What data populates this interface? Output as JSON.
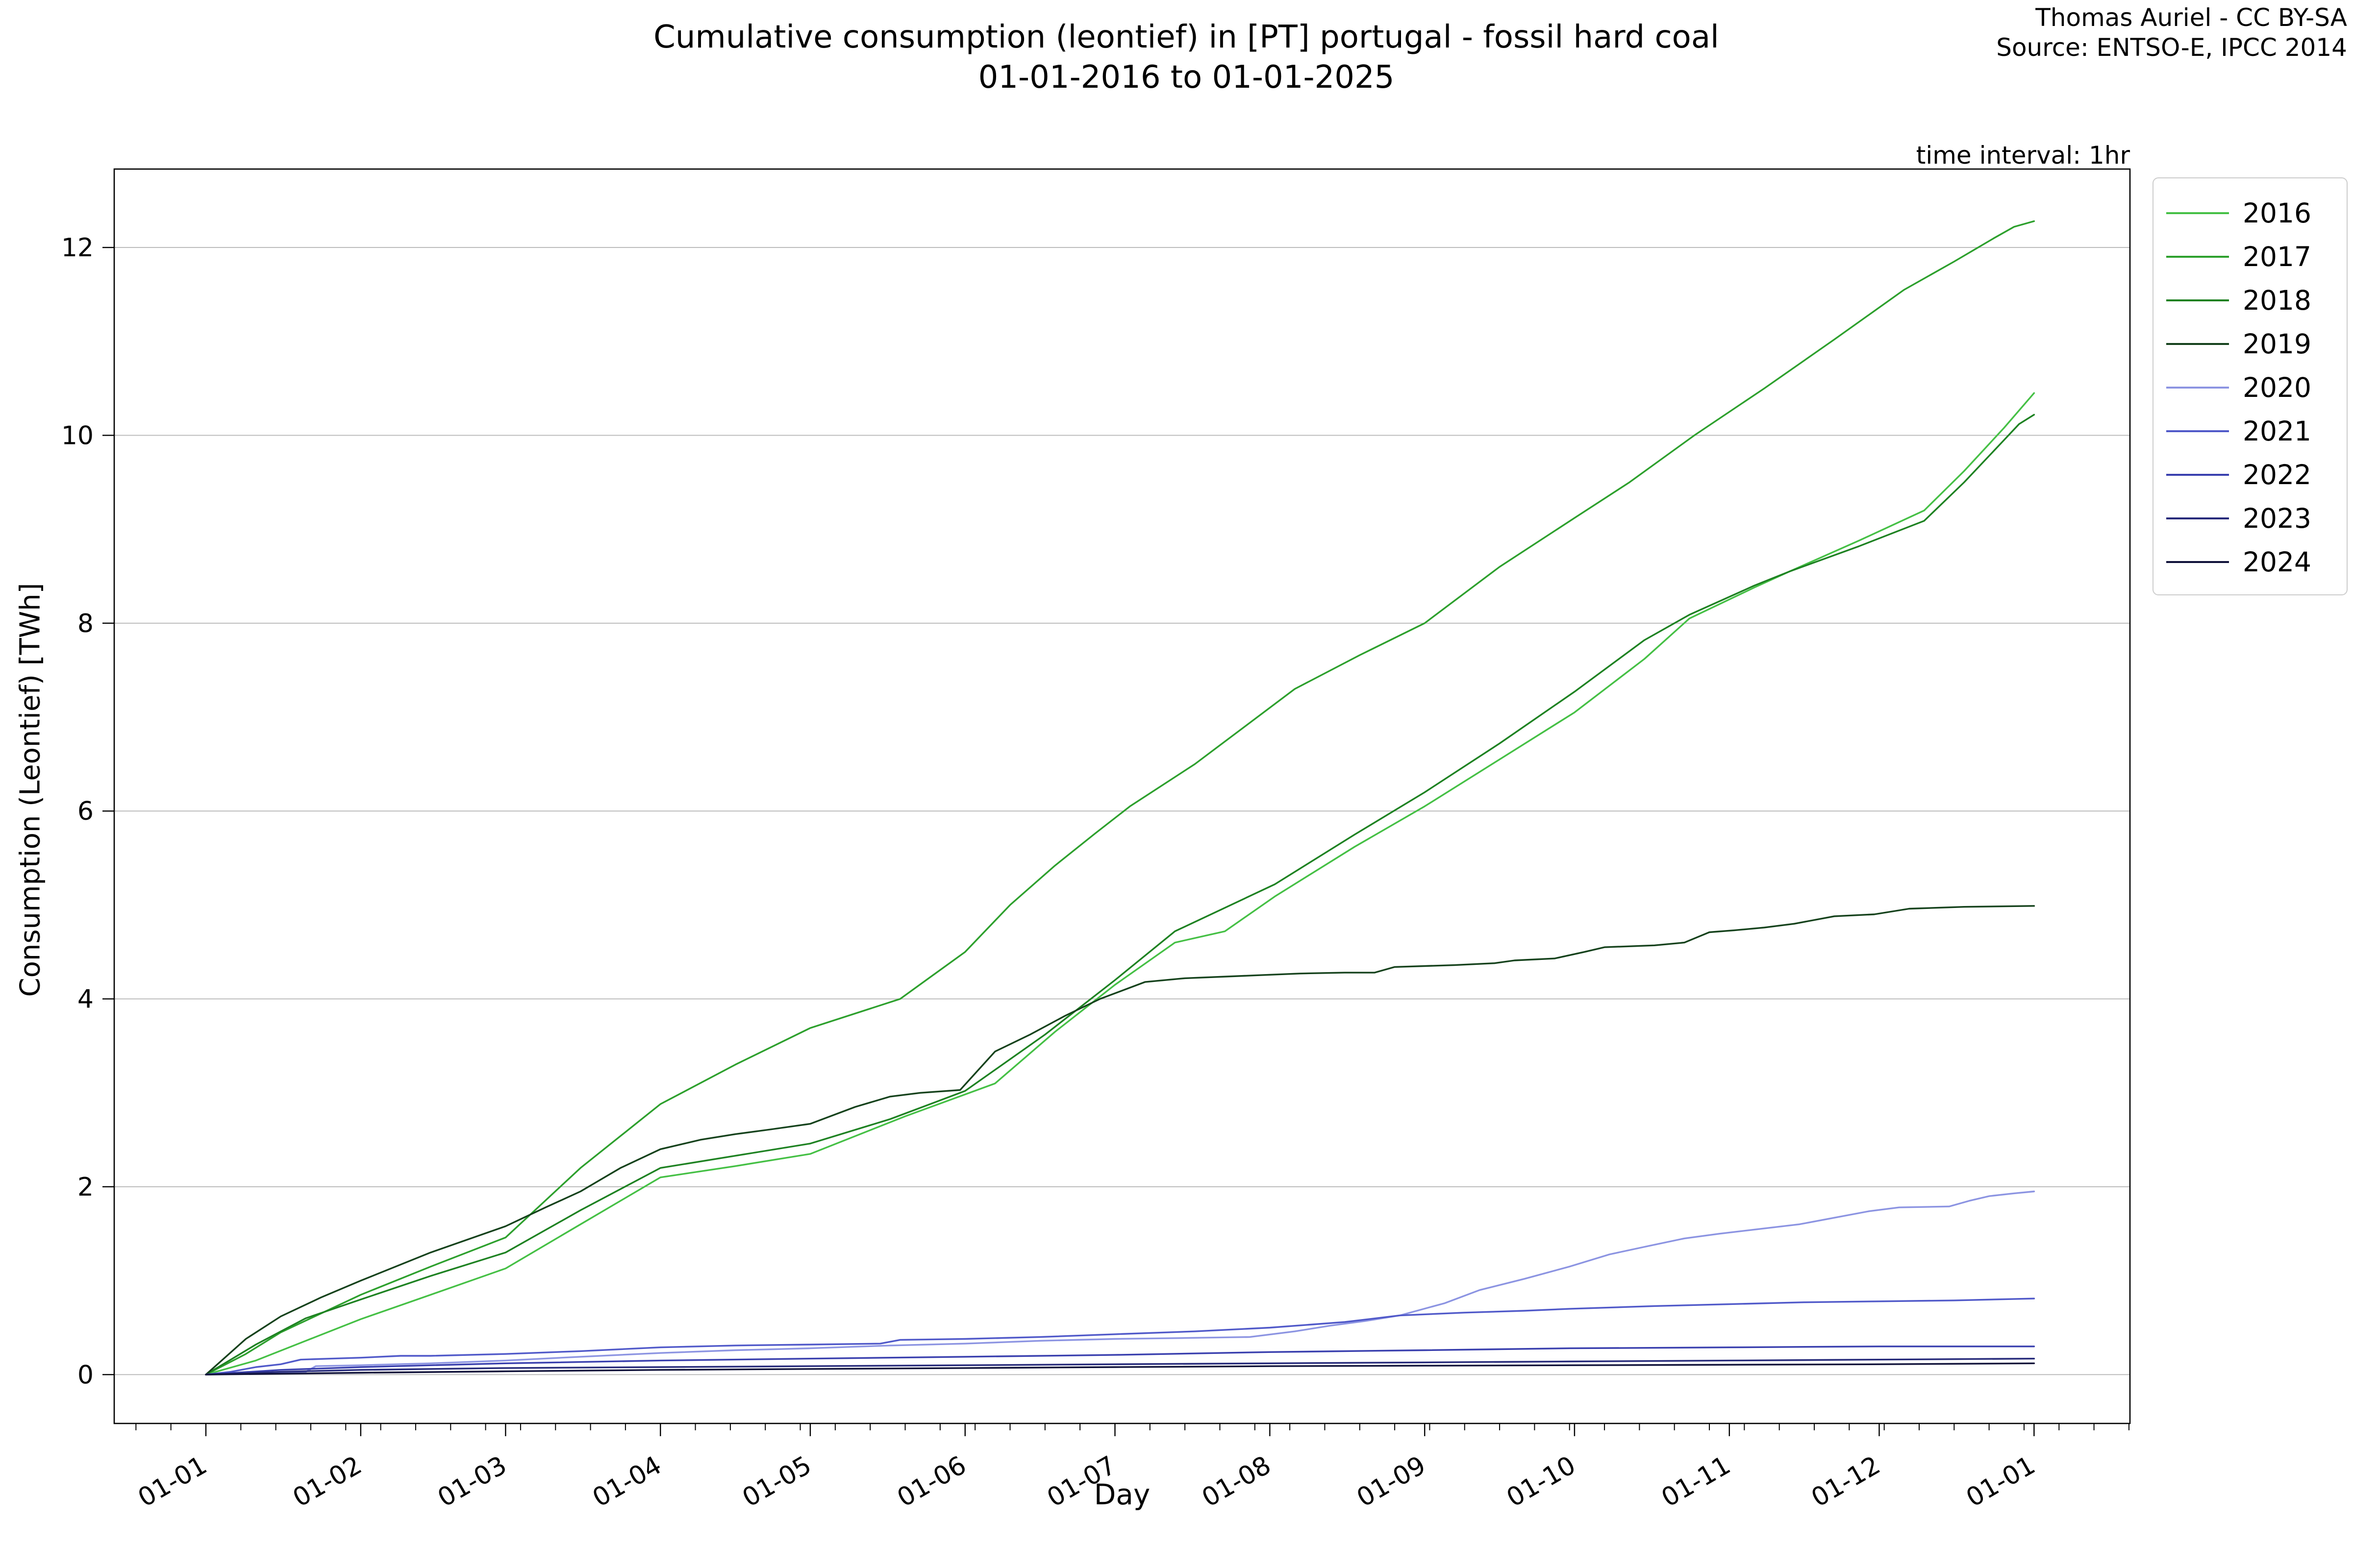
{
  "header": {
    "title_line1": "Cumulative consumption (leontief) in [PT] portugal - fossil hard coal",
    "title_line2": "01-01-2016 to 01-01-2025",
    "attribution_line1": "Thomas Auriel - CC BY-SA",
    "attribution_line2": "Source: ENTSO-E, IPCC 2014",
    "time_interval_label": "time interval: 1hr"
  },
  "chart_data": {
    "type": "line",
    "title": "Cumulative consumption (leontief) in [PT] portugal - fossil hard coal 01-01-2016 to 01-01-2025",
    "xlabel": "Day",
    "ylabel": "Consumption (Leontief) [TWh]",
    "x_unit": "day of year (01-01 = day 0)",
    "y_unit": "TWh",
    "xlim": [
      -18.35,
      385.2
    ],
    "ylim": [
      -0.52,
      12.835
    ],
    "y_ticks": [
      0,
      2,
      4,
      6,
      8,
      10,
      12
    ],
    "x_ticks": {
      "days": [
        0,
        31,
        60,
        91,
        121,
        152,
        182,
        213,
        244,
        274,
        305,
        335,
        366
      ],
      "labels": [
        "01-01",
        "01-02",
        "01-03",
        "01-04",
        "01-05",
        "01-06",
        "01-07",
        "01-08",
        "01-09",
        "01-10",
        "01-11",
        "01-12",
        "01-01"
      ]
    },
    "minor_tick_step_days": 7,
    "grid": "horizontal",
    "grid_color": "#b9b9b9",
    "legend_position": "outside upper right",
    "series": [
      {
        "name": "2016",
        "color": "#45c045",
        "end_value_TWh": 10.45,
        "points": [
          [
            0,
            0
          ],
          [
            10,
            0.15
          ],
          [
            20,
            0.36
          ],
          [
            31,
            0.59
          ],
          [
            45,
            0.85
          ],
          [
            60,
            1.13
          ],
          [
            75,
            1.6
          ],
          [
            91,
            2.1
          ],
          [
            106,
            2.22
          ],
          [
            121,
            2.35
          ],
          [
            140,
            2.75
          ],
          [
            158,
            3.1
          ],
          [
            170,
            3.65
          ],
          [
            182,
            4.15
          ],
          [
            194,
            4.6
          ],
          [
            204,
            4.72
          ],
          [
            214,
            5.09
          ],
          [
            230,
            5.62
          ],
          [
            244,
            6.05
          ],
          [
            259,
            6.55
          ],
          [
            274,
            7.05
          ],
          [
            288,
            7.62
          ],
          [
            297,
            8.05
          ],
          [
            310,
            8.38
          ],
          [
            317,
            8.55
          ],
          [
            331,
            8.88
          ],
          [
            344,
            9.2
          ],
          [
            352,
            9.62
          ],
          [
            360,
            10.08
          ],
          [
            366,
            10.45
          ]
        ]
      },
      {
        "name": "2017",
        "color": "#2da02d",
        "end_value_TWh": 12.28,
        "points": [
          [
            0,
            0
          ],
          [
            8,
            0.22
          ],
          [
            15,
            0.45
          ],
          [
            31,
            0.85
          ],
          [
            45,
            1.15
          ],
          [
            60,
            1.46
          ],
          [
            75,
            2.2
          ],
          [
            91,
            2.88
          ],
          [
            106,
            3.3
          ],
          [
            121,
            3.69
          ],
          [
            139,
            4.0
          ],
          [
            152,
            4.5
          ],
          [
            161,
            5.0
          ],
          [
            170,
            5.42
          ],
          [
            178,
            5.76
          ],
          [
            185,
            6.05
          ],
          [
            198,
            6.5
          ],
          [
            218,
            7.3
          ],
          [
            231,
            7.66
          ],
          [
            244,
            8.0
          ],
          [
            259,
            8.6
          ],
          [
            274,
            9.12
          ],
          [
            285,
            9.5
          ],
          [
            298,
            10.0
          ],
          [
            312,
            10.5
          ],
          [
            326,
            11.02
          ],
          [
            340,
            11.55
          ],
          [
            350,
            11.85
          ],
          [
            358,
            12.1
          ],
          [
            362,
            12.22
          ],
          [
            366,
            12.28
          ]
        ]
      },
      {
        "name": "2018",
        "color": "#1e8222",
        "end_value_TWh": 10.22,
        "points": [
          [
            0,
            0
          ],
          [
            10,
            0.32
          ],
          [
            20,
            0.6
          ],
          [
            31,
            0.8
          ],
          [
            45,
            1.05
          ],
          [
            60,
            1.3
          ],
          [
            75,
            1.75
          ],
          [
            91,
            2.2
          ],
          [
            106,
            2.33
          ],
          [
            121,
            2.46
          ],
          [
            137,
            2.72
          ],
          [
            152,
            3.02
          ],
          [
            168,
            3.62
          ],
          [
            182,
            4.2
          ],
          [
            194,
            4.72
          ],
          [
            214,
            5.22
          ],
          [
            230,
            5.75
          ],
          [
            244,
            6.2
          ],
          [
            259,
            6.72
          ],
          [
            274,
            7.27
          ],
          [
            288,
            7.82
          ],
          [
            297,
            8.09
          ],
          [
            310,
            8.4
          ],
          [
            317,
            8.55
          ],
          [
            331,
            8.82
          ],
          [
            344,
            9.09
          ],
          [
            352,
            9.5
          ],
          [
            360,
            9.95
          ],
          [
            363,
            10.12
          ],
          [
            366,
            10.22
          ]
        ]
      },
      {
        "name": "2019",
        "color": "#15421c",
        "end_value_TWh": 4.99,
        "points": [
          [
            0,
            0
          ],
          [
            8,
            0.38
          ],
          [
            15,
            0.62
          ],
          [
            23,
            0.82
          ],
          [
            31,
            1.0
          ],
          [
            45,
            1.3
          ],
          [
            60,
            1.58
          ],
          [
            68,
            1.78
          ],
          [
            75,
            1.95
          ],
          [
            83,
            2.2
          ],
          [
            91,
            2.4
          ],
          [
            99,
            2.5
          ],
          [
            106,
            2.56
          ],
          [
            113,
            2.61
          ],
          [
            121,
            2.67
          ],
          [
            130,
            2.85
          ],
          [
            137,
            2.96
          ],
          [
            143,
            3.0
          ],
          [
            151,
            3.03
          ],
          [
            158,
            3.44
          ],
          [
            165,
            3.62
          ],
          [
            172,
            3.82
          ],
          [
            179,
            4.0
          ],
          [
            188,
            4.18
          ],
          [
            196,
            4.22
          ],
          [
            210,
            4.25
          ],
          [
            219,
            4.27
          ],
          [
            228,
            4.28
          ],
          [
            234,
            4.28
          ],
          [
            238,
            4.34
          ],
          [
            250,
            4.36
          ],
          [
            258,
            4.38
          ],
          [
            262,
            4.41
          ],
          [
            270,
            4.43
          ],
          [
            276,
            4.5
          ],
          [
            280,
            4.55
          ],
          [
            290,
            4.57
          ],
          [
            296,
            4.6
          ],
          [
            301,
            4.71
          ],
          [
            306,
            4.73
          ],
          [
            312,
            4.76
          ],
          [
            318,
            4.8
          ],
          [
            326,
            4.88
          ],
          [
            334,
            4.9
          ],
          [
            341,
            4.96
          ],
          [
            352,
            4.98
          ],
          [
            366,
            4.99
          ]
        ]
      },
      {
        "name": "2020",
        "color": "#8c94e2",
        "end_value_TWh": 1.95,
        "points": [
          [
            0,
            0
          ],
          [
            10,
            0.02
          ],
          [
            20,
            0.03
          ],
          [
            22,
            0.09
          ],
          [
            31,
            0.1
          ],
          [
            45,
            0.12
          ],
          [
            60,
            0.15
          ],
          [
            75,
            0.19
          ],
          [
            91,
            0.23
          ],
          [
            106,
            0.26
          ],
          [
            121,
            0.28
          ],
          [
            137,
            0.31
          ],
          [
            152,
            0.33
          ],
          [
            167,
            0.36
          ],
          [
            182,
            0.38
          ],
          [
            196,
            0.39
          ],
          [
            209,
            0.4
          ],
          [
            218,
            0.46
          ],
          [
            225,
            0.52
          ],
          [
            232,
            0.57
          ],
          [
            239,
            0.63
          ],
          [
            248,
            0.76
          ],
          [
            255,
            0.9
          ],
          [
            264,
            1.02
          ],
          [
            273,
            1.15
          ],
          [
            281,
            1.28
          ],
          [
            288,
            1.36
          ],
          [
            296,
            1.45
          ],
          [
            303,
            1.5
          ],
          [
            311,
            1.55
          ],
          [
            319,
            1.6
          ],
          [
            326,
            1.67
          ],
          [
            333,
            1.74
          ],
          [
            339,
            1.78
          ],
          [
            349,
            1.79
          ],
          [
            353,
            1.85
          ],
          [
            357,
            1.9
          ],
          [
            362,
            1.93
          ],
          [
            366,
            1.95
          ]
        ]
      },
      {
        "name": "2021",
        "color": "#5059c9",
        "end_value_TWh": 0.81,
        "points": [
          [
            0,
            0
          ],
          [
            5,
            0.03
          ],
          [
            10,
            0.08
          ],
          [
            15,
            0.11
          ],
          [
            19,
            0.16
          ],
          [
            25,
            0.17
          ],
          [
            31,
            0.18
          ],
          [
            39,
            0.2
          ],
          [
            45,
            0.2
          ],
          [
            60,
            0.22
          ],
          [
            75,
            0.25
          ],
          [
            91,
            0.29
          ],
          [
            106,
            0.31
          ],
          [
            121,
            0.32
          ],
          [
            135,
            0.33
          ],
          [
            139,
            0.37
          ],
          [
            152,
            0.38
          ],
          [
            167,
            0.4
          ],
          [
            182,
            0.43
          ],
          [
            198,
            0.46
          ],
          [
            213,
            0.5
          ],
          [
            228,
            0.56
          ],
          [
            239,
            0.63
          ],
          [
            252,
            0.66
          ],
          [
            264,
            0.68
          ],
          [
            273,
            0.7
          ],
          [
            290,
            0.73
          ],
          [
            305,
            0.75
          ],
          [
            320,
            0.77
          ],
          [
            335,
            0.78
          ],
          [
            350,
            0.79
          ],
          [
            366,
            0.81
          ]
        ]
      },
      {
        "name": "2022",
        "color": "#393fae",
        "end_value_TWh": 0.3,
        "points": [
          [
            0,
            0
          ],
          [
            15,
            0.05
          ],
          [
            31,
            0.08
          ],
          [
            60,
            0.12
          ],
          [
            91,
            0.15
          ],
          [
            121,
            0.17
          ],
          [
            152,
            0.19
          ],
          [
            182,
            0.21
          ],
          [
            213,
            0.24
          ],
          [
            244,
            0.26
          ],
          [
            273,
            0.28
          ],
          [
            305,
            0.29
          ],
          [
            335,
            0.3
          ],
          [
            366,
            0.3
          ]
        ]
      },
      {
        "name": "2023",
        "color": "#262a7a",
        "end_value_TWh": 0.17,
        "points": [
          [
            0,
            0
          ],
          [
            15,
            0.03
          ],
          [
            31,
            0.05
          ],
          [
            60,
            0.07
          ],
          [
            91,
            0.08
          ],
          [
            121,
            0.09
          ],
          [
            152,
            0.1
          ],
          [
            182,
            0.11
          ],
          [
            213,
            0.12
          ],
          [
            244,
            0.13
          ],
          [
            273,
            0.14
          ],
          [
            305,
            0.15
          ],
          [
            335,
            0.16
          ],
          [
            366,
            0.17
          ]
        ]
      },
      {
        "name": "2024",
        "color": "#10123a",
        "end_value_TWh": 0.12,
        "points": [
          [
            0,
            0
          ],
          [
            31,
            0.02
          ],
          [
            60,
            0.035
          ],
          [
            91,
            0.05
          ],
          [
            121,
            0.06
          ],
          [
            152,
            0.07
          ],
          [
            182,
            0.08
          ],
          [
            213,
            0.09
          ],
          [
            244,
            0.095
          ],
          [
            273,
            0.1
          ],
          [
            305,
            0.105
          ],
          [
            335,
            0.11
          ],
          [
            366,
            0.12
          ]
        ]
      }
    ]
  }
}
